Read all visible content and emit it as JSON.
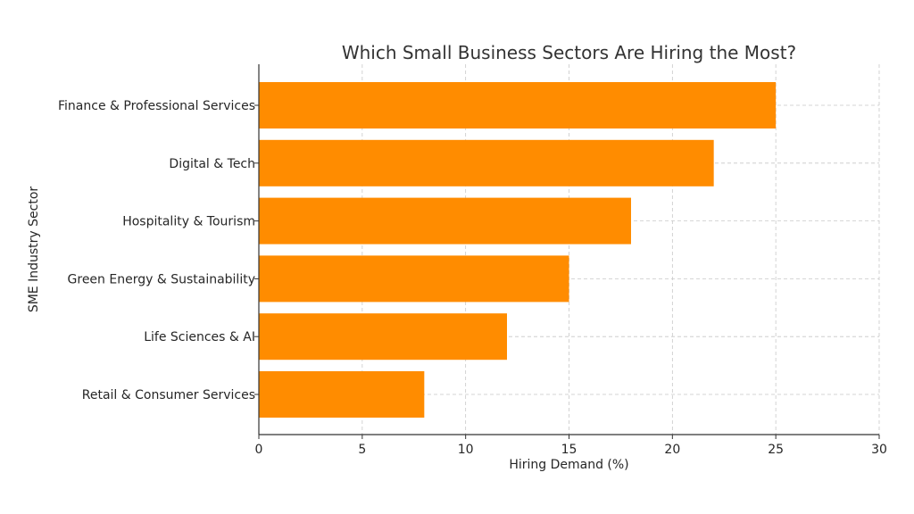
{
  "chart_data": {
    "type": "bar",
    "orientation": "horizontal",
    "title": "Which Small Business Sectors Are Hiring the Most?",
    "xlabel": "Hiring Demand (%)",
    "ylabel": "SME Industry Sector",
    "categories": [
      "Finance & Professional Services",
      "Digital & Tech",
      "Hospitality & Tourism",
      "Green Energy & Sustainability",
      "Life Sciences & AI",
      "Retail & Consumer Services"
    ],
    "values": [
      25,
      22,
      18,
      15,
      12,
      8
    ],
    "xlim": [
      0,
      30
    ],
    "xticks": [
      "0",
      "5",
      "10",
      "15",
      "20",
      "25",
      "30"
    ],
    "grid": true,
    "bar_color": "#ff8c00",
    "text_color": "#333333"
  }
}
